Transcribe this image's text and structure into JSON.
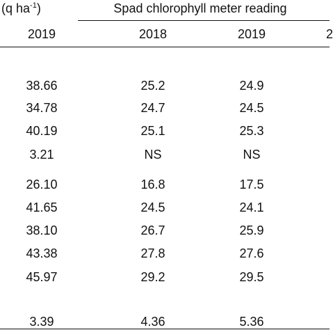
{
  "header": {
    "unit": [
      "(q ha",
      "-1",
      ")"
    ],
    "group": "Spad chlorophyll meter reading",
    "columns": [
      "2019",
      "2018",
      "2019",
      "2"
    ]
  },
  "table": {
    "rows": [
      [
        "38.66",
        "25.2",
        "24.9"
      ],
      [
        "34.78",
        "24.7",
        "24.5"
      ],
      [
        "40.19",
        "25.1",
        "25.3"
      ],
      [
        "3.21",
        "NS",
        "NS"
      ],
      [
        "26.10",
        "16.8",
        "17.5"
      ],
      [
        "41.65",
        "24.5",
        "24.1"
      ],
      [
        "38.10",
        "26.7",
        "25.9"
      ],
      [
        "43.38",
        "27.8",
        "27.6"
      ],
      [
        "45.97",
        "29.2",
        "29.5"
      ],
      [
        "3.39",
        "4.36",
        "5.36"
      ]
    ]
  }
}
